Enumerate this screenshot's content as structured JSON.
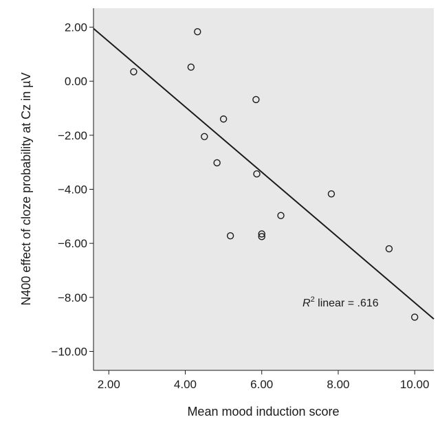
{
  "chart_data": {
    "type": "scatter",
    "xlabel": "Mean mood induction score",
    "ylabel": "N400 effect of cloze probability at Cz in µV",
    "xlim": [
      1.6,
      10.5
    ],
    "ylim": [
      -10.7,
      2.7
    ],
    "x_ticks": [
      2.0,
      4.0,
      6.0,
      8.0,
      10.0
    ],
    "x_tick_labels": [
      "2.00",
      "4.00",
      "6.00",
      "8.00",
      "10.00"
    ],
    "y_ticks": [
      2.0,
      0.0,
      -2.0,
      -4.0,
      -6.0,
      -8.0,
      -10.0
    ],
    "y_tick_labels": [
      "2.00",
      "0.00",
      "−2.00",
      "−4.00",
      "−6.00",
      "−8.00",
      "−10.00"
    ],
    "points": [
      {
        "x": 2.65,
        "y": 0.35
      },
      {
        "x": 4.15,
        "y": 0.52
      },
      {
        "x": 4.32,
        "y": 1.83
      },
      {
        "x": 4.5,
        "y": -2.05
      },
      {
        "x": 4.83,
        "y": -3.02
      },
      {
        "x": 5.0,
        "y": -1.4
      },
      {
        "x": 5.18,
        "y": -5.72
      },
      {
        "x": 5.85,
        "y": -0.68
      },
      {
        "x": 5.87,
        "y": -3.43
      },
      {
        "x": 6.0,
        "y": -5.65
      },
      {
        "x": 6.0,
        "y": -5.75
      },
      {
        "x": 6.5,
        "y": -4.97
      },
      {
        "x": 7.82,
        "y": -4.17
      },
      {
        "x": 9.33,
        "y": -6.2
      },
      {
        "x": 10.0,
        "y": -8.73
      }
    ],
    "fit_line": {
      "x": [
        1.6,
        10.5
      ],
      "y": [
        1.95,
        -8.8
      ]
    },
    "annotation": {
      "r_symbol": "R",
      "superscript": "2",
      "text": " linear = .616"
    },
    "grid": false,
    "legend": "none",
    "colors": {
      "plot_background": "#e8e8e8",
      "marker_edge": "#1a1a1a",
      "line": "#1a1a1a"
    }
  }
}
